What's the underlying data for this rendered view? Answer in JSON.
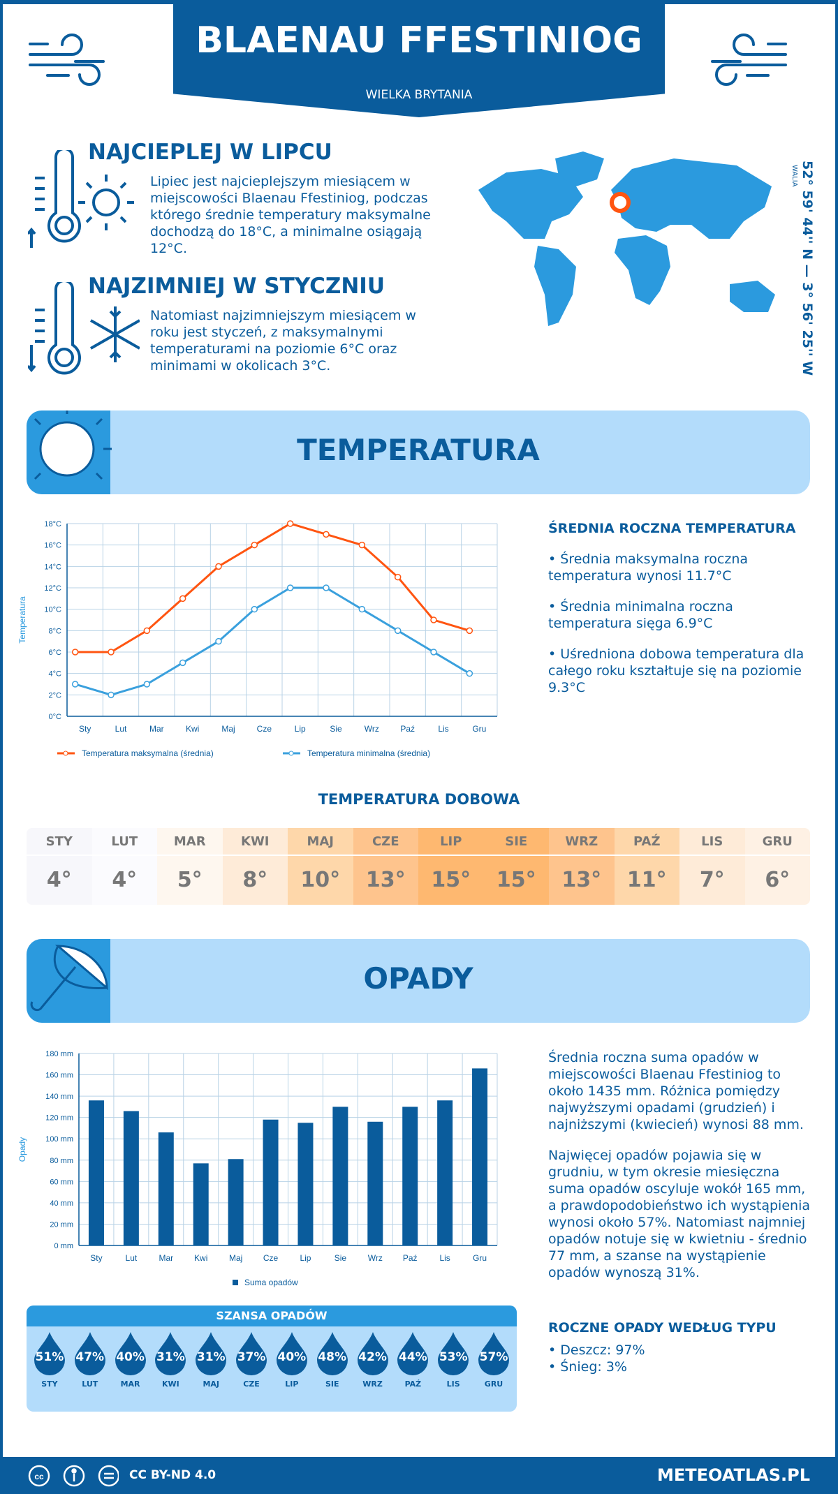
{
  "header": {
    "title": "BLAENAU FFESTINIOG",
    "country": "WIELKA BRYTANIA"
  },
  "warmest": {
    "title": "NAJCIEPLEJ W LIPCU",
    "text": "Lipiec jest najcieplejszym miesiącem w miejscowości Blaenau Ffestiniog, podczas którego średnie temperatury maksymalne dochodzą do 18°C, a minimalne osiągają 12°C."
  },
  "coldest": {
    "title": "NAJZIMNIEJ W STYCZNIU",
    "text": "Natomiast najzimniejszym miesiącem w roku jest styczeń, z maksymalnymi temperaturami na poziomie 6°C oraz minimami w okolicach 3°C."
  },
  "location": {
    "coords": "52° 59' 44'' N — 3° 56' 25'' W",
    "region": "WALIA"
  },
  "temperature": {
    "banner": "TEMPERATURA",
    "summary_title": "ŚREDNIA ROCZNA TEMPERATURA",
    "summary": [
      "• Średnia maksymalna roczna temperatura wynosi 11.7°C",
      "• Średnia minimalna roczna temperatura sięga 6.9°C",
      "• Uśredniona dobowa temperatura dla całego roku kształtuje się na poziomie 9.3°C"
    ],
    "daily_title": "TEMPERATURA DOBOWA",
    "daily": [
      {
        "m": "STY",
        "v": "4°",
        "c": "#f7f7fb"
      },
      {
        "m": "LUT",
        "v": "4°",
        "c": "#fbfbfe"
      },
      {
        "m": "MAR",
        "v": "5°",
        "c": "#fef7ef"
      },
      {
        "m": "KWI",
        "v": "8°",
        "c": "#feebd8"
      },
      {
        "m": "MAJ",
        "v": "10°",
        "c": "#fed7aa"
      },
      {
        "m": "CZE",
        "v": "13°",
        "c": "#fec48d"
      },
      {
        "m": "LIP",
        "v": "15°",
        "c": "#feb870"
      },
      {
        "m": "SIE",
        "v": "15°",
        "c": "#feb870"
      },
      {
        "m": "WRZ",
        "v": "13°",
        "c": "#fec48d"
      },
      {
        "m": "PAŹ",
        "v": "11°",
        "c": "#fed7aa"
      },
      {
        "m": "LIS",
        "v": "7°",
        "c": "#feebd8"
      },
      {
        "m": "GRU",
        "v": "6°",
        "c": "#fef1e4"
      }
    ]
  },
  "precip": {
    "banner": "OPADY",
    "text": [
      "Średnia roczna suma opadów w miejscowości Blaenau Ffestiniog to około 1435 mm. Różnica pomiędzy najwyższymi opadami (grudzień) i najniższymi (kwiecień) wynosi 88 mm.",
      "Najwięcej opadów pojawia się w grudniu, w tym okresie miesięczna suma opadów oscyluje wokół 165 mm, a prawdopodobieństwo ich wystąpienia wynosi około 57%. Natomiast najmniej opadów notuje się w kwietniu - średnio 77 mm, a szanse na wystąpienie opadów wynoszą 31%."
    ],
    "type_title": "ROCZNE OPADY WEDŁUG TYPU",
    "types": [
      "• Deszcz: 97%",
      "• Śnieg: 3%"
    ],
    "chance_title": "SZANSA OPADÓW",
    "chance": [
      {
        "m": "STY",
        "v": "51%"
      },
      {
        "m": "LUT",
        "v": "47%"
      },
      {
        "m": "MAR",
        "v": "40%"
      },
      {
        "m": "KWI",
        "v": "31%"
      },
      {
        "m": "MAJ",
        "v": "31%"
      },
      {
        "m": "CZE",
        "v": "37%"
      },
      {
        "m": "LIP",
        "v": "40%"
      },
      {
        "m": "SIE",
        "v": "48%"
      },
      {
        "m": "WRZ",
        "v": "42%"
      },
      {
        "m": "PAŹ",
        "v": "44%"
      },
      {
        "m": "LIS",
        "v": "53%"
      },
      {
        "m": "GRU",
        "v": "57%"
      }
    ]
  },
  "chart_data": [
    {
      "type": "line",
      "categories": [
        "Sty",
        "Lut",
        "Mar",
        "Kwi",
        "Maj",
        "Cze",
        "Lip",
        "Sie",
        "Wrz",
        "Paź",
        "Lis",
        "Gru"
      ],
      "ylabel": "Temperatura",
      "ylim": [
        0,
        18
      ],
      "yticks": [
        "0°C",
        "2°C",
        "4°C",
        "6°C",
        "8°C",
        "10°C",
        "12°C",
        "14°C",
        "16°C",
        "18°C"
      ],
      "grid": true,
      "legend": "bottom",
      "series": [
        {
          "name": "Temperatura maksymalna (średnia)",
          "color": "#ff5511",
          "values": [
            6,
            6,
            8,
            11,
            14,
            16,
            18,
            17,
            16,
            13,
            9,
            8
          ]
        },
        {
          "name": "Temperatura minimalna (średnia)",
          "color": "#3aa0dd",
          "values": [
            3,
            2,
            3,
            5,
            7,
            10,
            12,
            12,
            10,
            8,
            6,
            4
          ]
        }
      ]
    },
    {
      "type": "bar",
      "categories": [
        "Sty",
        "Lut",
        "Mar",
        "Kwi",
        "Maj",
        "Cze",
        "Lip",
        "Sie",
        "Wrz",
        "Paź",
        "Lis",
        "Gru"
      ],
      "ylabel": "Opady",
      "ylim": [
        0,
        180
      ],
      "yticks": [
        "0 mm",
        "20 mm",
        "40 mm",
        "60 mm",
        "80 mm",
        "100 mm",
        "120 mm",
        "140 mm",
        "160 mm",
        "180 mm"
      ],
      "grid": true,
      "legend": "bottom",
      "series": [
        {
          "name": "Suma opadów",
          "color": "#0a5c9c",
          "values": [
            136,
            126,
            106,
            77,
            81,
            118,
            115,
            130,
            116,
            130,
            136,
            166
          ]
        }
      ]
    }
  ],
  "footer": {
    "license": "CC BY-ND 4.0",
    "site": "METEOATLAS.PL"
  }
}
